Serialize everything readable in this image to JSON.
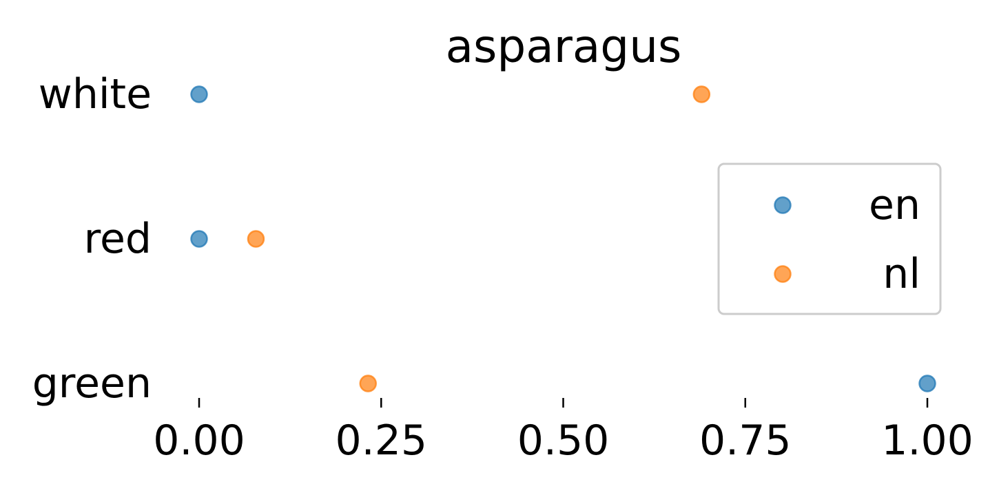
{
  "chart_data": {
    "type": "scatter",
    "title": "asparagus",
    "xlabel": "",
    "ylabel": "",
    "categories": [
      "green",
      "red",
      "white"
    ],
    "xlim": [
      -0.065,
      1.065
    ],
    "xticks": [
      0.0,
      0.25,
      0.5,
      0.75,
      1.0
    ],
    "xtick_labels": [
      "0.00",
      "0.25",
      "0.50",
      "0.75",
      "1.00"
    ],
    "grid": false,
    "legend_position": "center-right",
    "series": [
      {
        "name": "en",
        "color": "#1f77b4",
        "values": [
          1.0,
          0.0,
          0.0
        ]
      },
      {
        "name": "nl",
        "color": "#ff7f0e",
        "values": [
          0.232,
          0.078,
          0.69
        ]
      }
    ]
  }
}
